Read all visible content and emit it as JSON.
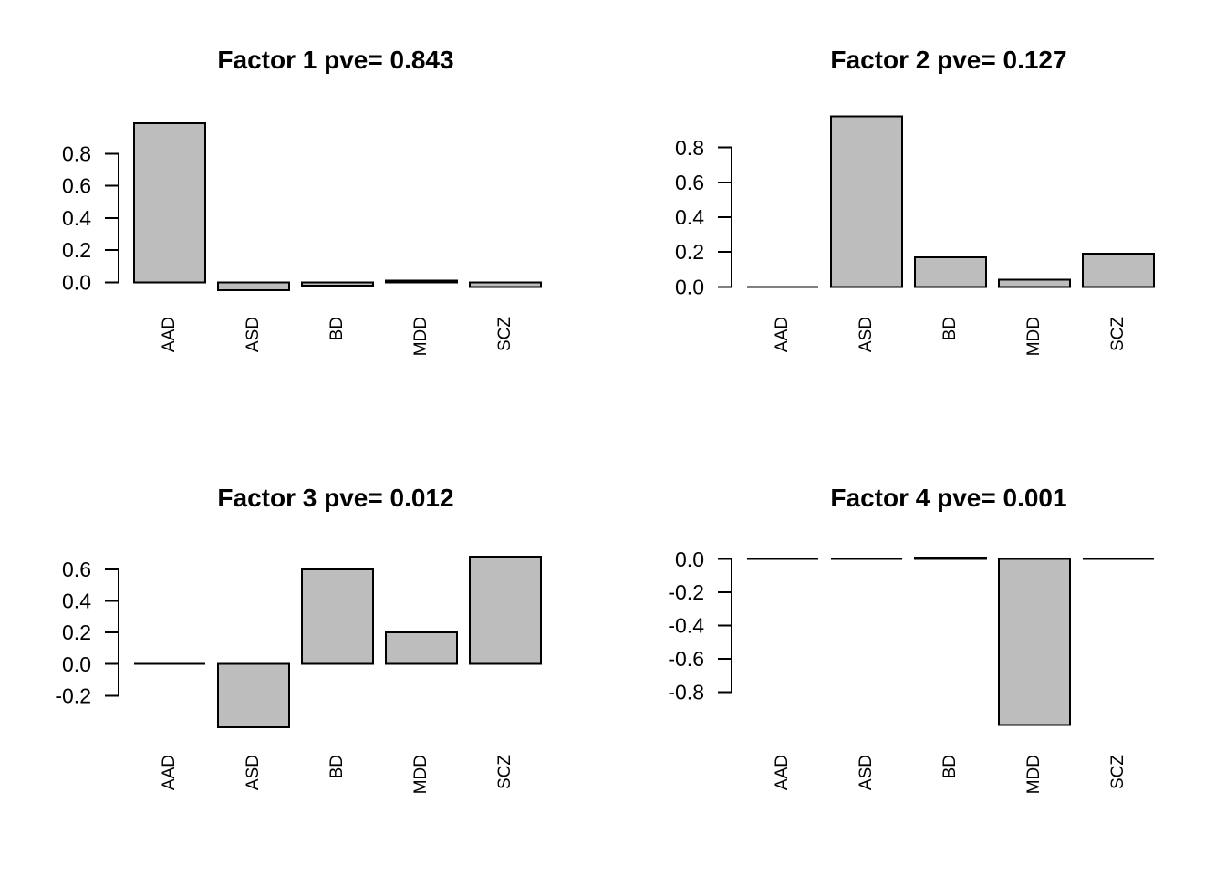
{
  "figure": {
    "background": "#ffffff",
    "rows": 2,
    "cols": 2
  },
  "colors": {
    "bar_fill": "#bdbdbd",
    "bar_border": "#000000",
    "axis": "#000000",
    "text": "#000000"
  },
  "chart_data": [
    {
      "type": "bar",
      "title": "Factor 1 pve= 0.843",
      "factor": "Factor 1",
      "pve": 0.843,
      "categories": [
        "AAD",
        "ASD",
        "BD",
        "MDD",
        "SCZ"
      ],
      "values": [
        0.99,
        -0.05,
        -0.02,
        0.01,
        -0.03
      ],
      "yticks": [
        "0.8",
        "0.6",
        "0.4",
        "0.2",
        "0.0"
      ],
      "ylim": [
        -0.09,
        1.04
      ],
      "xlabel": "",
      "ylabel": "",
      "grid": false,
      "legend": null
    },
    {
      "type": "bar",
      "title": "Factor 2 pve= 0.127",
      "factor": "Factor 2",
      "pve": 0.127,
      "categories": [
        "AAD",
        "ASD",
        "BD",
        "MDD",
        "SCZ"
      ],
      "values": [
        0.0,
        0.98,
        0.17,
        0.04,
        0.19
      ],
      "yticks": [
        "0.8",
        "0.6",
        "0.4",
        "0.2",
        "0.0"
      ],
      "ylim": [
        -0.04,
        1.02
      ],
      "xlabel": "",
      "ylabel": "",
      "grid": false,
      "legend": null
    },
    {
      "type": "bar",
      "title": "Factor 3 pve= 0.012",
      "factor": "Factor 3",
      "pve": 0.012,
      "categories": [
        "AAD",
        "ASD",
        "BD",
        "MDD",
        "SCZ"
      ],
      "values": [
        0.0,
        -0.4,
        0.6,
        0.2,
        0.68
      ],
      "yticks": [
        "0.6",
        "0.4",
        "0.2",
        "0.0",
        "-0.2"
      ],
      "ylim": [
        -0.45,
        0.72
      ],
      "xlabel": "",
      "ylabel": "",
      "grid": false,
      "legend": null
    },
    {
      "type": "bar",
      "title": "Factor 4 pve= 0.001",
      "factor": "Factor 4",
      "pve": 0.001,
      "categories": [
        "AAD",
        "ASD",
        "BD",
        "MDD",
        "SCZ"
      ],
      "values": [
        0.0,
        0.0,
        0.01,
        -1.0,
        0.0
      ],
      "yticks": [
        "0.0",
        "-0.2",
        "-0.4",
        "-0.6",
        "-0.8"
      ],
      "ylim": [
        -1.06,
        0.04
      ],
      "xlabel": "",
      "ylabel": "",
      "grid": false,
      "legend": null
    }
  ]
}
